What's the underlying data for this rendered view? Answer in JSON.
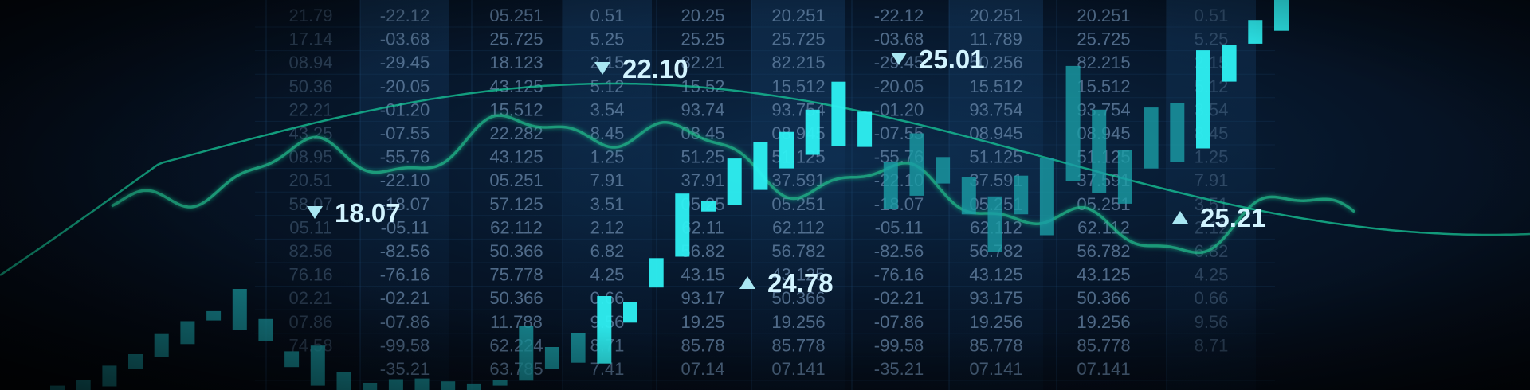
{
  "colors": {
    "background": "#040a14",
    "candle_bright": "#2ef0f2",
    "candle_dim": "#1a9ea6",
    "wave": "#1fb98a",
    "smooth_line": "#17c999",
    "callout_text": "#d2f4ff",
    "callout_arrow": "#a8e6f2",
    "grid_text": "#6f8fb0"
  },
  "background_table": {
    "columns": [
      [
        "21.79",
        "17.14",
        "08.94",
        "50.36",
        "22.21",
        "43.25",
        "08.95",
        "20.51",
        "58.07",
        "05.11",
        "82.56",
        "76.16",
        "02.21",
        "07.86",
        "74.58",
        "",
        ""
      ],
      [
        "-22.12",
        "-03.68",
        "-29.45",
        "-20.05",
        "-01.20",
        "-07.55",
        "-55.76",
        "-22.10",
        "-18.07",
        "-05.11",
        "-82.56",
        "-76.16",
        "-02.21",
        "-07.86",
        "-99.58",
        "-35.21",
        ""
      ],
      [
        "05.251",
        "25.725",
        "18.123",
        "43.125",
        "15.512",
        "22.282",
        "43.125",
        "05.251",
        "57.125",
        "62.112",
        "50.366",
        "75.778",
        "50.366",
        "11.788",
        "62.224",
        "63.785",
        ""
      ],
      [
        "0.51",
        "5.25",
        "2.15",
        "5.12",
        "3.54",
        "8.45",
        "1.25",
        "7.91",
        "3.51",
        "2.12",
        "6.82",
        "4.25",
        "0.66",
        "9.56",
        "8.71",
        "7.41",
        ""
      ],
      [
        "20.25",
        "25.25",
        "82.21",
        "15.52",
        "93.74",
        "08.45",
        "51.25",
        "37.91",
        "05.25",
        "62.11",
        "56.82",
        "43.15",
        "93.17",
        "19.25",
        "85.78",
        "07.14",
        ""
      ],
      [
        "20.251",
        "25.725",
        "82.215",
        "15.512",
        "93.754",
        "08.945",
        "51.125",
        "37.591",
        "05.251",
        "62.112",
        "56.782",
        "43.125",
        "50.366",
        "19.256",
        "85.778",
        "07.141",
        ""
      ],
      [
        "-22.12",
        "-03.68",
        "-29.45",
        "-20.05",
        "-01.20",
        "-07.55",
        "-55.76",
        "-22.10",
        "-18.07",
        "-05.11",
        "-82.56",
        "-76.16",
        "-02.21",
        "-07.86",
        "-99.58",
        "-35.21",
        ""
      ],
      [
        "20.251",
        "11.789",
        "50.256",
        "15.512",
        "93.754",
        "08.945",
        "51.125",
        "37.591",
        "05.251",
        "62.112",
        "56.782",
        "43.125",
        "93.175",
        "19.256",
        "85.778",
        "07.141",
        ""
      ],
      [
        "20.251",
        "25.725",
        "82.215",
        "15.512",
        "93.754",
        "08.945",
        "51.125",
        "37.591",
        "05.251",
        "62.112",
        "56.782",
        "43.125",
        "50.366",
        "19.256",
        "85.778",
        "07.141",
        ""
      ],
      [
        "0.51",
        "5.25",
        "2.15",
        "5.12",
        "3.54",
        "8.45",
        "1.25",
        "7.91",
        "3.51",
        "2.12",
        "6.82",
        "4.25",
        "0.66",
        "9.56",
        "8.71",
        "",
        ""
      ]
    ]
  },
  "chart_data": {
    "type": "candlestick",
    "title": "",
    "xlabel": "",
    "ylabel": "",
    "candles": [
      {
        "open": 0.0,
        "close": 0.6
      },
      {
        "open": 0.0,
        "close": 1.4
      },
      {
        "open": 0.5,
        "close": 3.4
      },
      {
        "open": 2.9,
        "close": 5.0
      },
      {
        "open": 4.6,
        "close": 7.8
      },
      {
        "open": 6.4,
        "close": 9.6
      },
      {
        "open": 9.7,
        "close": 11.0
      },
      {
        "open": 8.4,
        "close": 14.1
      },
      {
        "open": 6.8,
        "close": 9.9
      },
      {
        "open": 3.2,
        "close": 5.4
      },
      {
        "open": 0.6,
        "close": 6.2
      },
      {
        "open": 0.0,
        "close": 2.5
      },
      {
        "open": 0.0,
        "close": 1.0
      },
      {
        "open": 0.0,
        "close": 1.5
      },
      {
        "open": 0.0,
        "close": 1.6
      },
      {
        "open": 0.0,
        "close": 1.2
      },
      {
        "open": 0.0,
        "close": 0.9
      },
      {
        "open": 0.6,
        "close": 1.4
      },
      {
        "open": 1.3,
        "close": 8.9
      },
      {
        "open": 3.0,
        "close": 6.0
      },
      {
        "open": 3.8,
        "close": 7.9
      },
      {
        "open": 3.7,
        "close": 13.1
      },
      {
        "open": 9.4,
        "close": 12.3
      },
      {
        "open": 14.3,
        "close": 18.4
      },
      {
        "open": 18.6,
        "close": 27.4
      },
      {
        "open": 24.9,
        "close": 26.4
      },
      {
        "open": 25.8,
        "close": 32.3
      },
      {
        "open": 27.9,
        "close": 34.6
      },
      {
        "open": 30.9,
        "close": 36.0
      },
      {
        "open": 32.8,
        "close": 39.1
      },
      {
        "open": 34.0,
        "close": 43.0
      },
      {
        "open": 33.9,
        "close": 38.8
      },
      {
        "open": 25.2,
        "close": 31.8
      },
      {
        "open": 27.1,
        "close": 35.8
      },
      {
        "open": 28.8,
        "close": 32.5
      },
      {
        "open": 24.5,
        "close": 29.7
      },
      {
        "open": 19.3,
        "close": 27.0
      },
      {
        "open": 24.5,
        "close": 29.9
      },
      {
        "open": 21.6,
        "close": 32.4
      },
      {
        "open": 29.2,
        "close": 45.2
      },
      {
        "open": 27.5,
        "close": 39.1
      },
      {
        "open": 26.0,
        "close": 33.5
      },
      {
        "open": 30.9,
        "close": 39.4
      },
      {
        "open": 31.8,
        "close": 40.0
      },
      {
        "open": 33.7,
        "close": 47.4
      },
      {
        "open": 43.0,
        "close": 48.1
      },
      {
        "open": 48.3,
        "close": 51.6
      },
      {
        "open": 50.1,
        "close": 54.4
      }
    ],
    "annotations": [
      {
        "label": "18.07",
        "direction": "down"
      },
      {
        "label": "22.10",
        "direction": "down"
      },
      {
        "label": "24.78",
        "direction": "up"
      },
      {
        "label": "25.01",
        "direction": "down"
      },
      {
        "label": "25.21",
        "direction": "up"
      }
    ]
  }
}
